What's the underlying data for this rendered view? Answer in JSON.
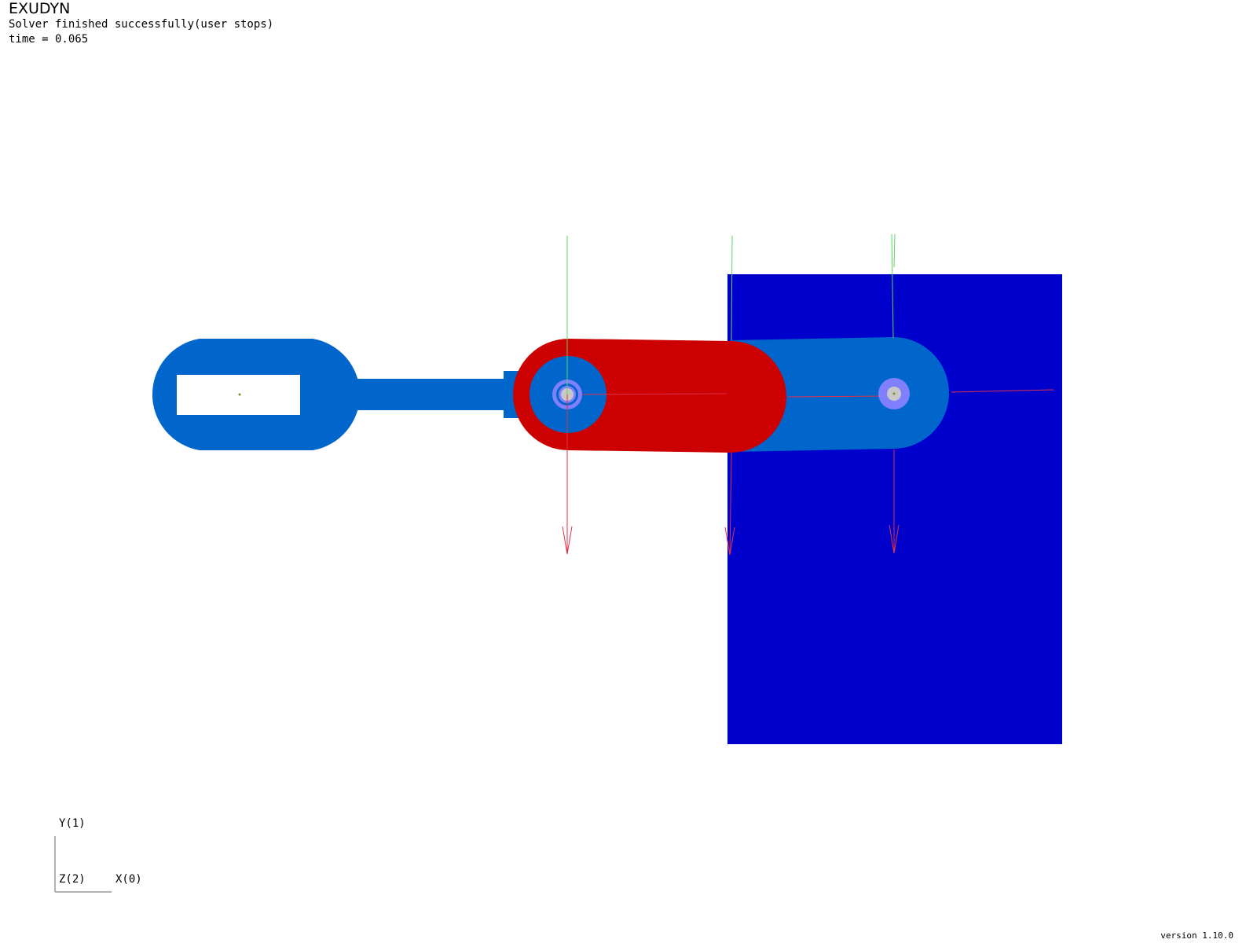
{
  "app": {
    "title": "EXUDYN",
    "status": "Solver finished successfully(user stops)",
    "time": "time = 0.065",
    "version": "version 1.10.0"
  },
  "axes_triad": {
    "y_label": "Y(1)",
    "z_label": "Z(2)",
    "x_label": "X(0)"
  },
  "colors": {
    "background": "#ffffff",
    "arm_blue": "#0066cc",
    "plate_blue": "#0000cc",
    "cylinder_red": "#cc0000",
    "joint_ring": "#8080ff",
    "joint_core": "#c8c8c8",
    "axis_red": "#e0304a",
    "axis_green": "#5ad45a"
  }
}
